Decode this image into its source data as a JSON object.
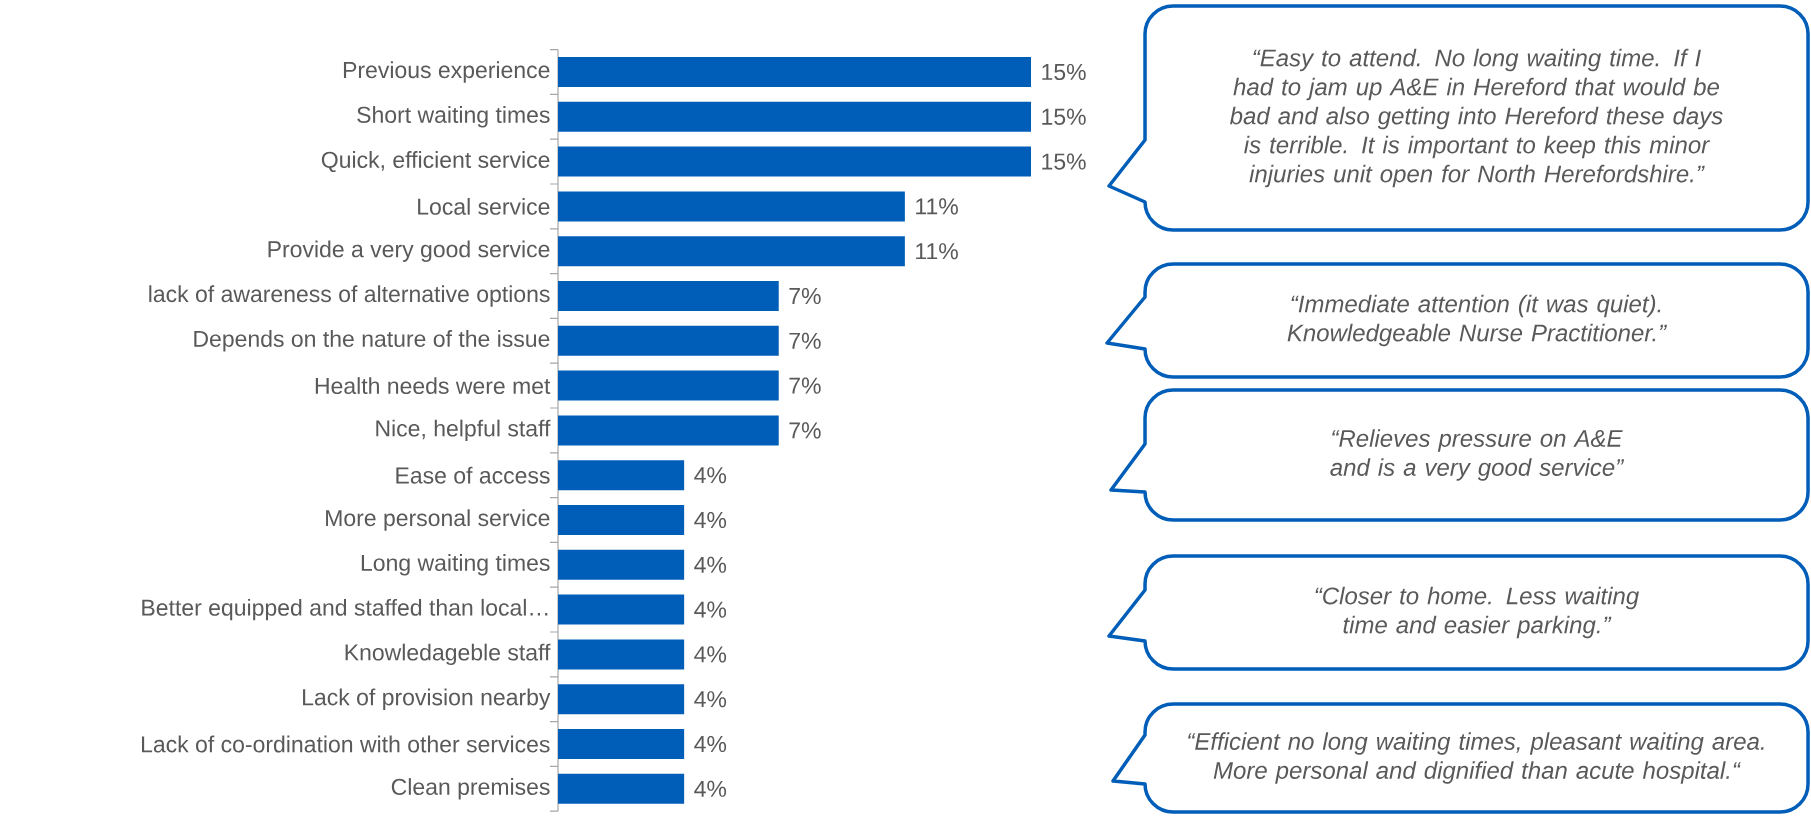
{
  "chart_data": {
    "type": "bar",
    "orientation": "horizontal",
    "categories": [
      "Previous experience",
      "Short waiting times",
      "Quick, efficient service",
      "Local service",
      "Provide a very good service",
      "lack of awareness of alternative options",
      "Depends on the nature of the issue",
      "Health needs were met",
      "Nice, helpful staff",
      "Ease of access",
      "More personal service",
      "Long waiting times",
      "Better equipped and staffed than local…",
      "Knowledageble staff",
      "Lack of provision nearby",
      "Lack of co-ordination with other services",
      "Clean premises"
    ],
    "values": [
      15,
      15,
      15,
      11,
      11,
      7,
      7,
      7,
      7,
      4,
      4,
      4,
      4,
      4,
      4,
      4,
      4
    ],
    "value_labels": [
      "15%",
      "15%",
      "15%",
      "11%",
      "11%",
      "7%",
      "7%",
      "7%",
      "7%",
      "4%",
      "4%",
      "4%",
      "4%",
      "4%",
      "4%",
      "4%",
      "4%"
    ],
    "color": "#005eb8",
    "annotations": [
      "“Easy to attend. No long waiting time. If I had to jam up A&E in Hereford that would be bad and also getting into Hereford these days is terrible. It is important to keep this minor injuries unit open for North Herefordshire.”",
      "“Immediate attention (it was quiet). Knowledgeable Nurse Practitioner.”",
      "“Relieves pressure on A&E and is a very good service”",
      "“Closer to home.  Less waiting time and easier parking.”",
      "“Efficient no long waiting times, pleasant waiting area. More personal and dignified than acute hospital.“"
    ]
  }
}
